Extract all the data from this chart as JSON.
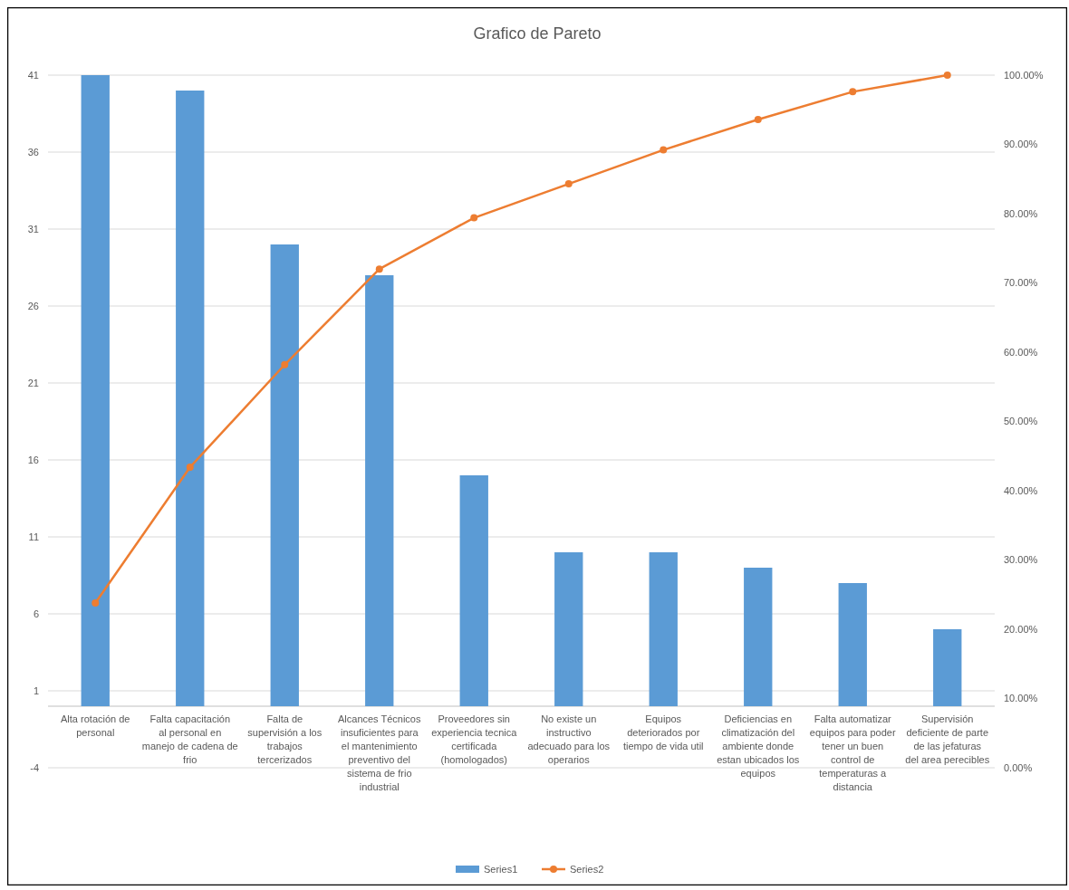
{
  "chart_data": {
    "type": "bar",
    "title": "Grafico de Pareto",
    "categories": [
      "Alta rotación de personal",
      "Falta capacitación al personal en manejo de cadena de frio",
      "Falta de supervisión a los trabajos tercerizados",
      "Alcances  Técnicos insuficientes para el mantenimiento preventivo del sistema de frio industrial",
      "Proveedores sin experiencia tecnica certificada (homologados)",
      "No existe un instructivo adecuado para los operarios",
      "Equipos deteriorados por tiempo de vida util",
      "Deficiencias en climatización del ambiente donde estan ubicados los equipos",
      "Falta automatizar equipos para poder tener un buen control de temperaturas a distancia",
      "Supervisión deficiente de parte de las jefaturas del area perecibles"
    ],
    "series": [
      {
        "name": "Series1",
        "color": "#5b9bd5",
        "values": [
          41,
          40,
          30,
          28,
          15,
          10,
          10,
          9,
          8,
          5
        ]
      },
      {
        "name": "Series2",
        "type": "line",
        "axis": "y2",
        "color": "#ed7d31",
        "marker": "circle",
        "values": [
          23.8,
          43.4,
          58.2,
          72,
          79.4,
          84.3,
          89.2,
          93.6,
          97.6,
          100
        ]
      }
    ],
    "ylim": [
      -4,
      41
    ],
    "yticks": [
      -4,
      1,
      6,
      11,
      16,
      21,
      26,
      31,
      36,
      41
    ],
    "y2lim": [
      0,
      100
    ],
    "y2ticks": [
      {
        "value": 0,
        "label": "0.00%"
      },
      {
        "value": 10,
        "label": "10.00%"
      },
      {
        "value": 20,
        "label": "20.00%"
      },
      {
        "value": 30,
        "label": "30.00%"
      },
      {
        "value": 40,
        "label": "40.00%"
      },
      {
        "value": 50,
        "label": "50.00%"
      },
      {
        "value": 60,
        "label": "60.00%"
      },
      {
        "value": 70,
        "label": "70.00%"
      },
      {
        "value": 80,
        "label": "80.00%"
      },
      {
        "value": 90,
        "label": "90.00%"
      },
      {
        "value": 100,
        "label": "100.00%"
      }
    ],
    "grid": "y",
    "legend": "bottom"
  }
}
